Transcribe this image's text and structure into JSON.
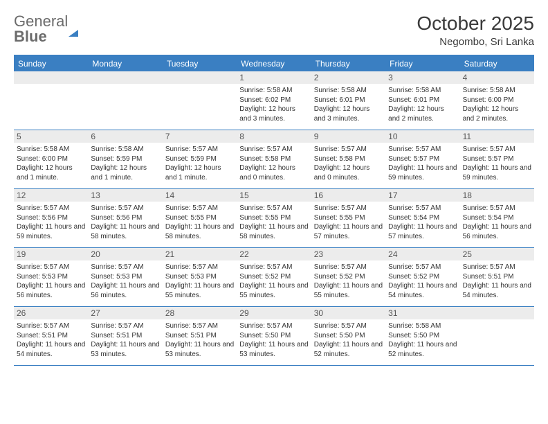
{
  "logo": {
    "text1": "General",
    "text2": "Blue"
  },
  "title": "October 2025",
  "location": "Negombo, Sri Lanka",
  "weekdays": [
    "Sunday",
    "Monday",
    "Tuesday",
    "Wednesday",
    "Thursday",
    "Friday",
    "Saturday"
  ],
  "colors": {
    "brand": "#3a7fc2",
    "text": "#333333",
    "muted": "#6b6b6b",
    "daybar": "#ececec"
  },
  "weeks": [
    [
      {
        "day": null
      },
      {
        "day": null
      },
      {
        "day": null
      },
      {
        "day": "1",
        "sunrise": "5:58 AM",
        "sunset": "6:02 PM",
        "daylight": "12 hours and 3 minutes."
      },
      {
        "day": "2",
        "sunrise": "5:58 AM",
        "sunset": "6:01 PM",
        "daylight": "12 hours and 3 minutes."
      },
      {
        "day": "3",
        "sunrise": "5:58 AM",
        "sunset": "6:01 PM",
        "daylight": "12 hours and 2 minutes."
      },
      {
        "day": "4",
        "sunrise": "5:58 AM",
        "sunset": "6:00 PM",
        "daylight": "12 hours and 2 minutes."
      }
    ],
    [
      {
        "day": "5",
        "sunrise": "5:58 AM",
        "sunset": "6:00 PM",
        "daylight": "12 hours and 1 minute."
      },
      {
        "day": "6",
        "sunrise": "5:58 AM",
        "sunset": "5:59 PM",
        "daylight": "12 hours and 1 minute."
      },
      {
        "day": "7",
        "sunrise": "5:57 AM",
        "sunset": "5:59 PM",
        "daylight": "12 hours and 1 minute."
      },
      {
        "day": "8",
        "sunrise": "5:57 AM",
        "sunset": "5:58 PM",
        "daylight": "12 hours and 0 minutes."
      },
      {
        "day": "9",
        "sunrise": "5:57 AM",
        "sunset": "5:58 PM",
        "daylight": "12 hours and 0 minutes."
      },
      {
        "day": "10",
        "sunrise": "5:57 AM",
        "sunset": "5:57 PM",
        "daylight": "11 hours and 59 minutes."
      },
      {
        "day": "11",
        "sunrise": "5:57 AM",
        "sunset": "5:57 PM",
        "daylight": "11 hours and 59 minutes."
      }
    ],
    [
      {
        "day": "12",
        "sunrise": "5:57 AM",
        "sunset": "5:56 PM",
        "daylight": "11 hours and 59 minutes."
      },
      {
        "day": "13",
        "sunrise": "5:57 AM",
        "sunset": "5:56 PM",
        "daylight": "11 hours and 58 minutes."
      },
      {
        "day": "14",
        "sunrise": "5:57 AM",
        "sunset": "5:55 PM",
        "daylight": "11 hours and 58 minutes."
      },
      {
        "day": "15",
        "sunrise": "5:57 AM",
        "sunset": "5:55 PM",
        "daylight": "11 hours and 58 minutes."
      },
      {
        "day": "16",
        "sunrise": "5:57 AM",
        "sunset": "5:55 PM",
        "daylight": "11 hours and 57 minutes."
      },
      {
        "day": "17",
        "sunrise": "5:57 AM",
        "sunset": "5:54 PM",
        "daylight": "11 hours and 57 minutes."
      },
      {
        "day": "18",
        "sunrise": "5:57 AM",
        "sunset": "5:54 PM",
        "daylight": "11 hours and 56 minutes."
      }
    ],
    [
      {
        "day": "19",
        "sunrise": "5:57 AM",
        "sunset": "5:53 PM",
        "daylight": "11 hours and 56 minutes."
      },
      {
        "day": "20",
        "sunrise": "5:57 AM",
        "sunset": "5:53 PM",
        "daylight": "11 hours and 56 minutes."
      },
      {
        "day": "21",
        "sunrise": "5:57 AM",
        "sunset": "5:53 PM",
        "daylight": "11 hours and 55 minutes."
      },
      {
        "day": "22",
        "sunrise": "5:57 AM",
        "sunset": "5:52 PM",
        "daylight": "11 hours and 55 minutes."
      },
      {
        "day": "23",
        "sunrise": "5:57 AM",
        "sunset": "5:52 PM",
        "daylight": "11 hours and 55 minutes."
      },
      {
        "day": "24",
        "sunrise": "5:57 AM",
        "sunset": "5:52 PM",
        "daylight": "11 hours and 54 minutes."
      },
      {
        "day": "25",
        "sunrise": "5:57 AM",
        "sunset": "5:51 PM",
        "daylight": "11 hours and 54 minutes."
      }
    ],
    [
      {
        "day": "26",
        "sunrise": "5:57 AM",
        "sunset": "5:51 PM",
        "daylight": "11 hours and 54 minutes."
      },
      {
        "day": "27",
        "sunrise": "5:57 AM",
        "sunset": "5:51 PM",
        "daylight": "11 hours and 53 minutes."
      },
      {
        "day": "28",
        "sunrise": "5:57 AM",
        "sunset": "5:51 PM",
        "daylight": "11 hours and 53 minutes."
      },
      {
        "day": "29",
        "sunrise": "5:57 AM",
        "sunset": "5:50 PM",
        "daylight": "11 hours and 53 minutes."
      },
      {
        "day": "30",
        "sunrise": "5:57 AM",
        "sunset": "5:50 PM",
        "daylight": "11 hours and 52 minutes."
      },
      {
        "day": "31",
        "sunrise": "5:58 AM",
        "sunset": "5:50 PM",
        "daylight": "11 hours and 52 minutes."
      },
      {
        "day": null
      }
    ]
  ],
  "labels": {
    "sunrise": "Sunrise:",
    "sunset": "Sunset:",
    "daylight": "Daylight:"
  }
}
